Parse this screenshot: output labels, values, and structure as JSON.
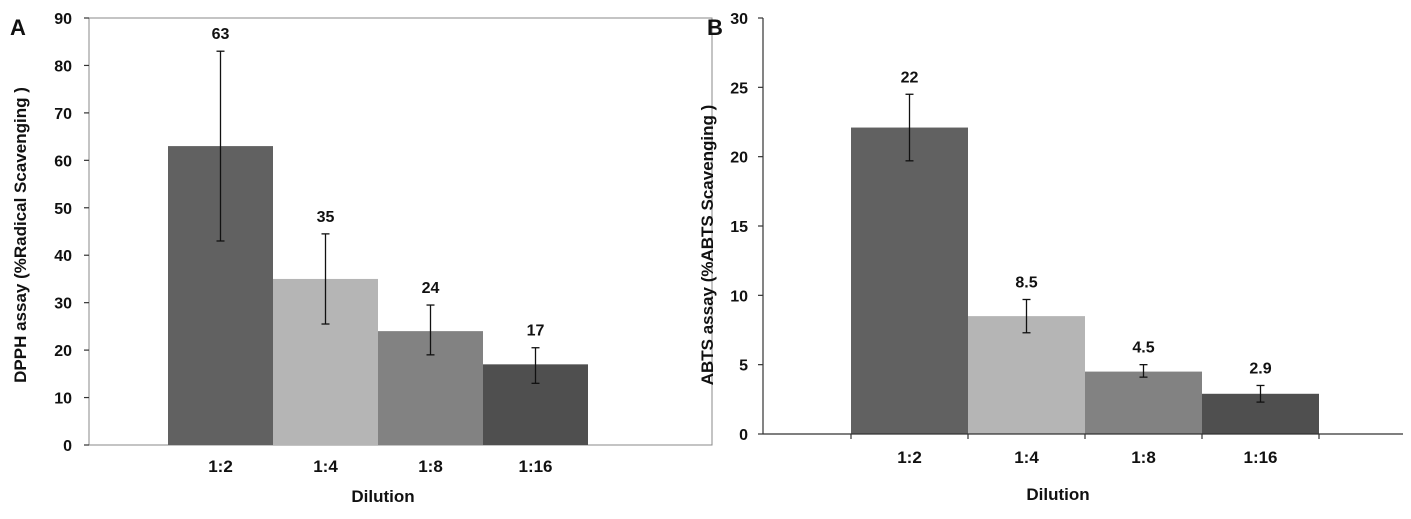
{
  "chart_data": [
    {
      "panel": "A",
      "type": "bar",
      "categories": [
        "1:2",
        "1:4",
        "1:8",
        "1:16"
      ],
      "values": [
        63,
        35,
        24,
        17
      ],
      "value_labels": [
        "63",
        "35",
        "24",
        "17"
      ],
      "error_high": [
        83,
        44.5,
        29.5,
        20.5
      ],
      "error_low": [
        43,
        25.5,
        19,
        13
      ],
      "colors": [
        "#616161",
        "#b5b5b5",
        "#828282",
        "#4f4f4f"
      ],
      "xlabel": "Dilution",
      "ylabel": "DPPH assay (%Radical Scavenging )",
      "ylim": [
        0,
        90
      ],
      "yticks": [
        0,
        10,
        20,
        30,
        40,
        50,
        60,
        70,
        80,
        90
      ],
      "grid": false,
      "legend": "none"
    },
    {
      "panel": "B",
      "type": "bar",
      "categories": [
        "1:2",
        "1:4",
        "1:8",
        "1:16"
      ],
      "values": [
        22.1,
        8.5,
        4.5,
        2.9
      ],
      "value_labels": [
        "22",
        "8.5",
        "4.5",
        "2.9"
      ],
      "error_high": [
        24.5,
        9.7,
        5,
        3.5
      ],
      "error_low": [
        19.7,
        7.3,
        4.1,
        2.3
      ],
      "colors": [
        "#616161",
        "#b5b5b5",
        "#828282",
        "#4f4f4f"
      ],
      "xlabel": "Dilution",
      "ylabel": "ABTS assay (%ABTS Scavenging )",
      "ylim": [
        0,
        30
      ],
      "yticks": [
        0,
        5,
        10,
        15,
        20,
        25,
        30
      ],
      "grid": false,
      "legend": "none"
    }
  ]
}
